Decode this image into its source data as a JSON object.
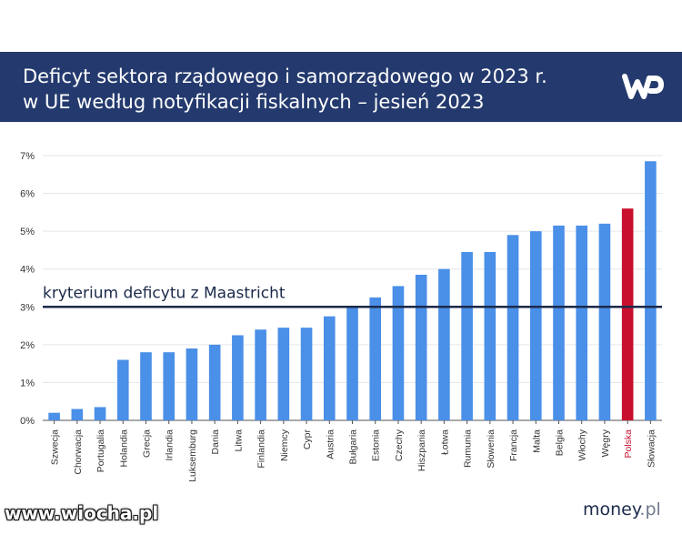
{
  "header": {
    "title_line1": "Deficyt sektora rządowego i samorządowego w 2023 r.",
    "title_line2": "w UE według notyfikacji fiskalnych – jesień 2023",
    "logo": "WP",
    "background": "#243a6e"
  },
  "footer": {
    "watermark": "www.wiocha.pl",
    "brand_main": "money",
    "brand_suffix": ".pl"
  },
  "chart_data": {
    "type": "bar",
    "title": "Deficyt sektora rządowego i samorządowego w 2023 r. w UE według notyfikacji fiskalnych – jesień 2023",
    "categories": [
      "Szwecja",
      "Chorwacja",
      "Portugalia",
      "Holandia",
      "Grecja",
      "Irlandia",
      "Luksemburg",
      "Dania",
      "Litwa",
      "Finlandia",
      "Niemcy",
      "Cypr",
      "Austria",
      "Bułgaria",
      "Estonia",
      "Czechy",
      "Hiszpania",
      "Łotwa",
      "Rumunia",
      "Słowenia",
      "Francja",
      "Malta",
      "Belgia",
      "Włochy",
      "Węgry",
      "Polska",
      "Słowacja"
    ],
    "values": [
      0.2,
      0.3,
      0.35,
      1.6,
      1.8,
      1.8,
      1.9,
      2.0,
      2.25,
      2.4,
      2.45,
      2.45,
      2.75,
      3.0,
      3.25,
      3.55,
      3.85,
      4.0,
      4.45,
      4.45,
      4.9,
      5.0,
      5.15,
      5.15,
      5.2,
      5.6,
      6.85
    ],
    "highlight": {
      "category": "Polska",
      "color": "#c8102e"
    },
    "bar_color": "#4a8fe8",
    "ylim": [
      0,
      7
    ],
    "yticks": [
      "0%",
      "1%",
      "2%",
      "3%",
      "4%",
      "5%",
      "6%",
      "7%"
    ],
    "grid": true,
    "reference_line": {
      "value": 3,
      "label": "kryterium deficytu z Maastricht",
      "color": "#1b2a4a"
    },
    "xlabel": "",
    "ylabel": ""
  }
}
